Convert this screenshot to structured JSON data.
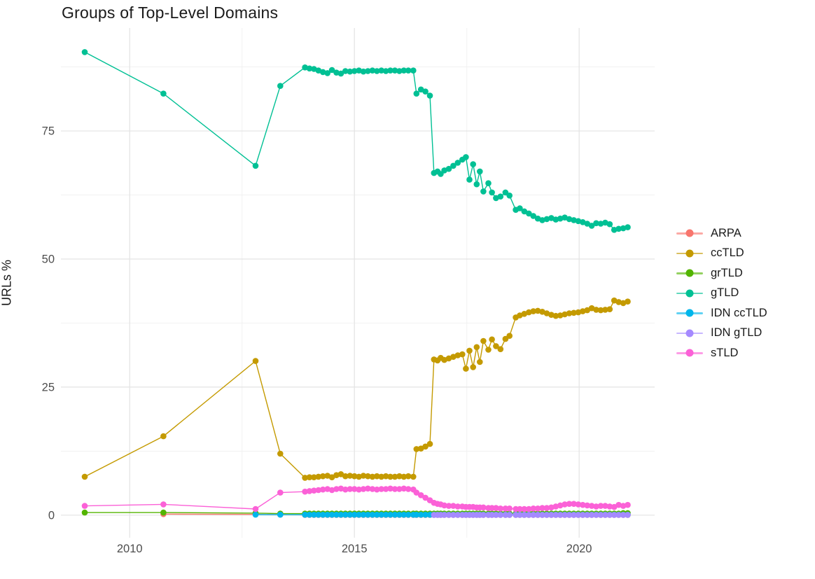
{
  "title": "Groups of Top-Level Domains",
  "axes": {
    "y_title": "URLs %",
    "x_title": ""
  },
  "colors": {
    "background": "#ffffff",
    "title_text": "#1a1a1a",
    "tick_label": "#4d4d4d",
    "grid_major": "#e3e3e3",
    "grid_minor": "#f1f1f1"
  },
  "chart_data": {
    "type": "line",
    "title": "Groups of Top-Level Domains",
    "xlabel": "",
    "ylabel": "URLs %",
    "grid": true,
    "legend_position": "right",
    "xlim": [
      2008.47,
      2021.68
    ],
    "ylim": [
      -4.4,
      95.1
    ],
    "x_ticks": [
      {
        "value": 2010,
        "label": "2010"
      },
      {
        "value": 2015,
        "label": "2015"
      },
      {
        "value": 2020,
        "label": "2020"
      }
    ],
    "y_ticks": [
      {
        "value": 0,
        "label": "0"
      },
      {
        "value": 25,
        "label": "25"
      },
      {
        "value": 50,
        "label": "50"
      },
      {
        "value": 75,
        "label": "75"
      }
    ],
    "x_minor_gridlines": [
      2012.5,
      2017.5
    ],
    "y_minor_gridlines": [
      12.5,
      37.5,
      62.5,
      87.5
    ],
    "x_dense": [
      2013.9,
      2014.0,
      2014.1,
      2014.2,
      2014.3,
      2014.4,
      2014.5,
      2014.6,
      2014.7,
      2014.8,
      2014.9,
      2015.0,
      2015.1,
      2015.2,
      2015.3,
      2015.4,
      2015.5,
      2015.6,
      2015.7,
      2015.8,
      2015.9,
      2016.0,
      2016.1,
      2016.2,
      2016.31,
      2016.38,
      2016.48,
      2016.58,
      2016.68,
      2016.77,
      2016.85,
      2016.92,
      2017.0,
      2017.1,
      2017.2,
      2017.3,
      2017.4,
      2017.48,
      2017.56,
      2017.64,
      2017.72,
      2017.79,
      2017.87,
      2017.98,
      2018.06,
      2018.15,
      2018.25,
      2018.36,
      2018.45,
      2018.59,
      2018.68,
      2018.78,
      2018.88,
      2018.98,
      2019.08,
      2019.18,
      2019.28,
      2019.38,
      2019.48,
      2019.58,
      2019.68,
      2019.78,
      2019.88,
      2019.98,
      2020.08,
      2020.18,
      2020.28,
      2020.38,
      2020.48,
      2020.58,
      2020.68,
      2020.78,
      2020.88,
      2020.98,
      2021.08
    ],
    "series": [
      {
        "name": "ARPA",
        "color": "#F8766D",
        "lead": [
          [
            2010.75,
            0.2
          ],
          [
            2012.8,
            0.15
          ],
          [
            2013.35,
            0.1
          ]
        ],
        "dense_fill": 0.05,
        "dense_start_index": 0
      },
      {
        "name": "ccTLD",
        "color": "#C49A00",
        "lead": [
          [
            2009.0,
            7.5
          ],
          [
            2010.75,
            15.4
          ],
          [
            2012.8,
            30.1
          ],
          [
            2013.35,
            12.0
          ]
        ],
        "dense_values": [
          7.3,
          7.4,
          7.4,
          7.5,
          7.6,
          7.7,
          7.4,
          7.8,
          8.0,
          7.6,
          7.7,
          7.6,
          7.5,
          7.7,
          7.6,
          7.5,
          7.6,
          7.5,
          7.6,
          7.5,
          7.5,
          7.6,
          7.5,
          7.6,
          7.5,
          12.9,
          13.0,
          13.4,
          13.9,
          30.4,
          30.2,
          30.7,
          30.3,
          30.6,
          30.9,
          31.2,
          31.4,
          28.6,
          32.1,
          28.9,
          32.8,
          29.9,
          34.0,
          32.3,
          34.3,
          33.0,
          32.4,
          34.4,
          35.0,
          38.6,
          39.0,
          39.3,
          39.6,
          39.8,
          39.9,
          39.7,
          39.4,
          39.1,
          38.9,
          39.0,
          39.2,
          39.4,
          39.5,
          39.6,
          39.8,
          40.0,
          40.4,
          40.1,
          40.0,
          40.1,
          40.2,
          41.9,
          41.6,
          41.4,
          41.7
        ],
        "dense_start_index": 0
      },
      {
        "name": "grTLD",
        "color": "#53B400",
        "lead": [
          [
            2009.0,
            0.5
          ],
          [
            2010.75,
            0.5
          ],
          [
            2012.8,
            0.4
          ],
          [
            2013.35,
            0.3
          ]
        ],
        "dense_values": [
          0.3,
          0.3,
          0.3,
          0.3,
          0.3,
          0.3,
          0.3,
          0.3,
          0.3,
          0.3,
          0.3,
          0.3,
          0.3,
          0.3,
          0.3,
          0.3,
          0.3,
          0.3,
          0.3,
          0.3,
          0.3,
          0.3,
          0.3,
          0.3,
          0.3,
          0.3,
          0.3,
          0.3,
          0.3,
          0.3,
          0.3,
          0.3,
          0.3,
          0.3,
          0.3,
          0.3,
          0.3,
          0.3,
          0.3,
          0.3,
          0.3,
          0.3,
          0.3,
          0.3,
          0.3,
          0.3,
          0.3,
          0.3,
          0.3,
          0.3,
          0.3,
          0.3,
          0.3,
          0.3,
          0.3,
          0.3,
          0.3,
          0.3,
          0.3,
          0.3,
          0.3,
          0.3,
          0.3,
          0.3,
          0.3,
          0.3,
          0.3,
          0.3,
          0.3,
          0.3,
          0.3,
          0.3,
          0.3,
          0.4,
          0.4
        ],
        "dense_start_index": 0
      },
      {
        "name": "gTLD",
        "color": "#00C094",
        "lead": [
          [
            2009.0,
            90.4
          ],
          [
            2010.75,
            82.3
          ],
          [
            2012.8,
            68.2
          ],
          [
            2013.35,
            83.8
          ]
        ],
        "dense_values": [
          87.4,
          87.2,
          87.1,
          86.8,
          86.5,
          86.3,
          86.9,
          86.4,
          86.2,
          86.7,
          86.6,
          86.7,
          86.8,
          86.6,
          86.7,
          86.8,
          86.7,
          86.8,
          86.7,
          86.8,
          86.8,
          86.7,
          86.8,
          86.8,
          86.8,
          82.3,
          83.1,
          82.7,
          81.9,
          66.8,
          67.1,
          66.6,
          67.3,
          67.6,
          68.2,
          68.8,
          69.4,
          69.9,
          65.5,
          68.5,
          64.6,
          67.1,
          63.2,
          64.8,
          63.0,
          61.9,
          62.2,
          63.0,
          62.4,
          59.6,
          59.9,
          59.3,
          58.9,
          58.4,
          57.9,
          57.6,
          57.8,
          58.0,
          57.7,
          57.9,
          58.1,
          57.8,
          57.6,
          57.4,
          57.2,
          56.9,
          56.5,
          57.0,
          56.9,
          57.1,
          56.8,
          55.7,
          55.9,
          56.0,
          56.2
        ],
        "dense_start_index": 0
      },
      {
        "name": "IDN ccTLD",
        "color": "#00B6EB",
        "lead": [
          [
            2012.8,
            0.1
          ],
          [
            2013.35,
            0.1
          ]
        ],
        "dense_fill": 0.08,
        "dense_start_index": 0
      },
      {
        "name": "IDN gTLD",
        "color": "#A58AFF",
        "lead": [],
        "dense_fill": 0.05,
        "dense_start_index": 29
      },
      {
        "name": "sTLD",
        "color": "#FB61D7",
        "lead": [
          [
            2009.0,
            1.8
          ],
          [
            2010.75,
            2.1
          ],
          [
            2012.8,
            1.2
          ],
          [
            2013.35,
            4.4
          ]
        ],
        "dense_values": [
          4.6,
          4.7,
          4.8,
          4.9,
          5.0,
          5.1,
          4.9,
          5.1,
          5.2,
          5.0,
          5.1,
          5.1,
          5.0,
          5.1,
          5.2,
          5.1,
          5.0,
          5.1,
          5.1,
          5.2,
          5.1,
          5.1,
          5.2,
          5.1,
          5.0,
          4.4,
          3.9,
          3.4,
          2.9,
          2.4,
          2.2,
          2.1,
          1.9,
          1.8,
          1.8,
          1.7,
          1.7,
          1.6,
          1.6,
          1.6,
          1.5,
          1.5,
          1.5,
          1.4,
          1.4,
          1.4,
          1.3,
          1.3,
          1.3,
          1.2,
          1.2,
          1.2,
          1.2,
          1.3,
          1.3,
          1.4,
          1.4,
          1.5,
          1.7,
          1.9,
          2.1,
          2.2,
          2.2,
          2.1,
          2.0,
          1.9,
          1.8,
          1.7,
          1.8,
          1.8,
          1.7,
          1.6,
          2.0,
          1.8,
          2.0
        ],
        "dense_start_index": 0
      }
    ]
  },
  "legend": {
    "items": [
      {
        "label": "ARPA"
      },
      {
        "label": "ccTLD"
      },
      {
        "label": "grTLD"
      },
      {
        "label": "gTLD"
      },
      {
        "label": "IDN ccTLD"
      },
      {
        "label": "IDN gTLD"
      },
      {
        "label": "sTLD"
      }
    ]
  }
}
